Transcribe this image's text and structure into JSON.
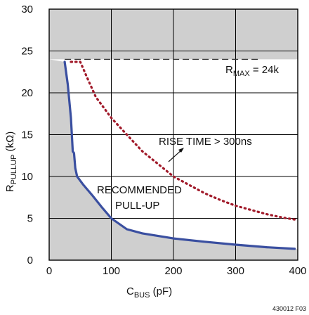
{
  "chart_data": {
    "type": "line",
    "title": "",
    "xlabel": {
      "main": "C",
      "sub": "BUS",
      "unit": " (pF)"
    },
    "ylabel": {
      "main": "R",
      "sub": "PULLUP",
      "unit": " (kΩ)"
    },
    "xlim": [
      0,
      400
    ],
    "ylim": [
      0,
      30
    ],
    "x_ticks": [
      0,
      100,
      200,
      300,
      400
    ],
    "y_ticks": [
      0,
      5,
      10,
      15,
      20,
      25,
      30
    ],
    "grid": true,
    "series": [
      {
        "name": "RECOMMENDED PULL-UP",
        "style": "solid",
        "color": "#3a4fa0",
        "points": [
          [
            25,
            23.7
          ],
          [
            30,
            21
          ],
          [
            35,
            17
          ],
          [
            38,
            13
          ],
          [
            40,
            12.8
          ],
          [
            42,
            11
          ],
          [
            45,
            10
          ],
          [
            55,
            9
          ],
          [
            70,
            7.7
          ],
          [
            85,
            6.3
          ],
          [
            100,
            5
          ],
          [
            125,
            3.7
          ],
          [
            150,
            3.2
          ],
          [
            200,
            2.6
          ],
          [
            250,
            2.2
          ],
          [
            300,
            1.85
          ],
          [
            350,
            1.55
          ],
          [
            395,
            1.35
          ]
        ]
      },
      {
        "name": "RISE TIME > 300ns",
        "style": "dotted",
        "color": "#a11a2a",
        "points": [
          [
            35,
            23.7
          ],
          [
            50,
            23.7
          ],
          [
            60,
            22
          ],
          [
            75,
            19.5
          ],
          [
            100,
            17
          ],
          [
            125,
            15
          ],
          [
            150,
            13
          ],
          [
            175,
            11.5
          ],
          [
            200,
            10
          ],
          [
            225,
            9
          ],
          [
            250,
            8
          ],
          [
            275,
            7.2
          ],
          [
            300,
            6.5
          ],
          [
            325,
            6
          ],
          [
            350,
            5.5
          ],
          [
            375,
            5.1
          ],
          [
            400,
            4.8
          ]
        ]
      }
    ],
    "annotations": {
      "rmax_text": {
        "main": "R",
        "sub": "MAX",
        "rest": " = 24k"
      },
      "rmax_value": 24,
      "rise_time_label": "RISE TIME > 300ns",
      "recommended_line1": "RECOMMENDED",
      "recommended_line2": "PULL-UP"
    },
    "shaded_region": "left of the recommended pull-up curve",
    "colors": {
      "shade": "#cfcfcf",
      "grid": "#000000",
      "rmax_line": "#333333"
    }
  },
  "figure_id": "430012 F03"
}
